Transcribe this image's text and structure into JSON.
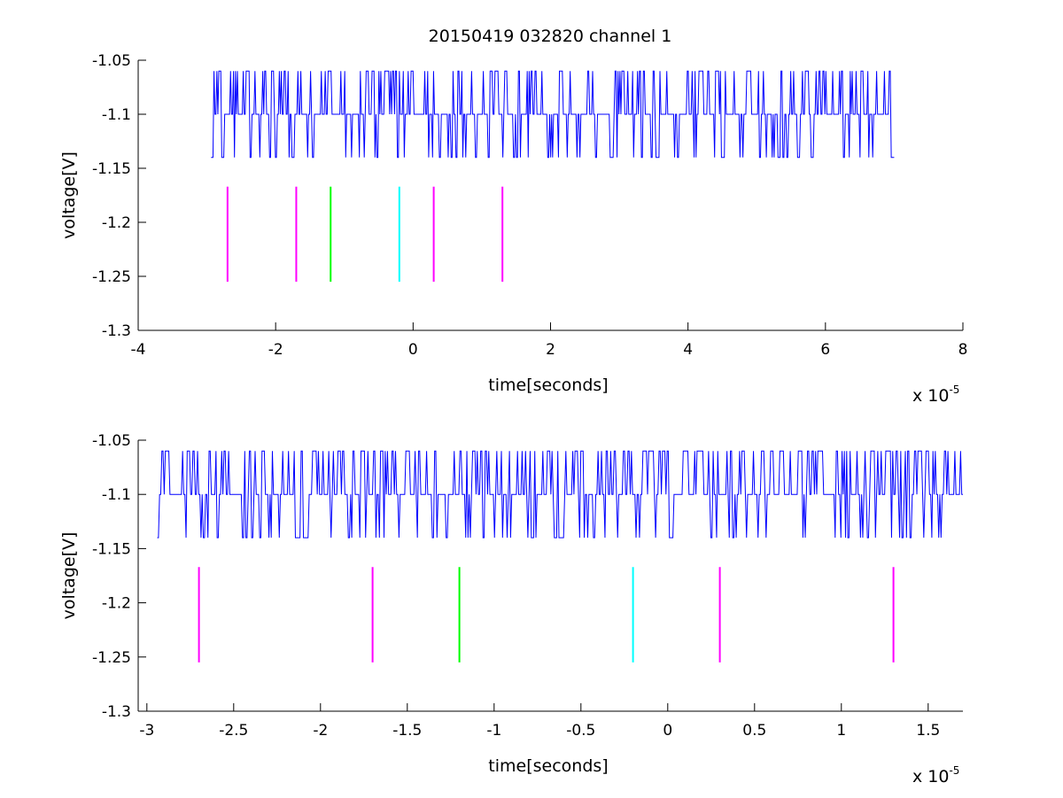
{
  "title": "20150419 032820 channel 1",
  "chart_data": [
    {
      "type": "line",
      "xlabel": "time[seconds]",
      "ylabel": "voltage[V]",
      "x_exponent_label": "x 10",
      "x_exponent": "-5",
      "xlim": [
        -4e-05,
        8e-05
      ],
      "ylim": [
        -1.3,
        -1.05
      ],
      "xticks": [
        -4e-05,
        -2e-05,
        0,
        2e-05,
        4e-05,
        6e-05,
        8e-05
      ],
      "xtick_labels": [
        "-4",
        "-2",
        "0",
        "2",
        "4",
        "6",
        "8"
      ],
      "yticks": [
        -1.05,
        -1.1,
        -1.15,
        -1.2,
        -1.25,
        -1.3
      ],
      "ytick_labels": [
        "-1.05",
        "-1.1",
        "-1.15",
        "-1.2",
        "-1.25",
        "-1.3"
      ],
      "series": [
        {
          "color": "#0000ff",
          "x_start": -2.94e-05,
          "x_end": 7e-05,
          "seed": 11
        }
      ],
      "markers": [
        {
          "x": -2.7e-05,
          "y": [
            -1.255,
            -1.167
          ],
          "color": "#ff00ff"
        },
        {
          "x": -1.7e-05,
          "y": [
            -1.255,
            -1.167
          ],
          "color": "#ff00ff"
        },
        {
          "x": -1.2e-05,
          "y": [
            -1.255,
            -1.167
          ],
          "color": "#00ff00"
        },
        {
          "x": -2e-06,
          "y": [
            -1.255,
            -1.167
          ],
          "color": "#00ffff"
        },
        {
          "x": 3e-06,
          "y": [
            -1.255,
            -1.167
          ],
          "color": "#ff00ff"
        },
        {
          "x": 1.3e-05,
          "y": [
            -1.255,
            -1.167
          ],
          "color": "#ff00ff"
        }
      ]
    },
    {
      "type": "line",
      "xlabel": "time[seconds]",
      "ylabel": "voltage[V]",
      "x_exponent_label": "x 10",
      "x_exponent": "-5",
      "xlim": [
        -3.05e-05,
        1.7e-05
      ],
      "ylim": [
        -1.3,
        -1.05
      ],
      "xticks": [
        -3e-05,
        -2.5e-05,
        -2e-05,
        -1.5e-05,
        -1e-05,
        -5e-06,
        0,
        5e-06,
        1e-05,
        1.5e-05
      ],
      "xtick_labels": [
        "-3",
        "-2.5",
        "-2",
        "-1.5",
        "-1",
        "-0.5",
        "0",
        "0.5",
        "1",
        "1.5"
      ],
      "yticks": [
        -1.05,
        -1.1,
        -1.15,
        -1.2,
        -1.25,
        -1.3
      ],
      "ytick_labels": [
        "-1.05",
        "-1.1",
        "-1.15",
        "-1.2",
        "-1.25",
        "-1.3"
      ],
      "series": [
        {
          "color": "#0000ff",
          "x_start": -2.94e-05,
          "x_end": 1.7e-05,
          "seed": 7
        }
      ],
      "markers": [
        {
          "x": -2.7e-05,
          "y": [
            -1.255,
            -1.167
          ],
          "color": "#ff00ff"
        },
        {
          "x": -1.7e-05,
          "y": [
            -1.255,
            -1.167
          ],
          "color": "#ff00ff"
        },
        {
          "x": -1.2e-05,
          "y": [
            -1.255,
            -1.167
          ],
          "color": "#00ff00"
        },
        {
          "x": -2e-06,
          "y": [
            -1.255,
            -1.167
          ],
          "color": "#00ffff"
        },
        {
          "x": 3e-06,
          "y": [
            -1.255,
            -1.167
          ],
          "color": "#ff00ff"
        },
        {
          "x": 1.3e-05,
          "y": [
            -1.255,
            -1.167
          ],
          "color": "#ff00ff"
        }
      ]
    }
  ]
}
